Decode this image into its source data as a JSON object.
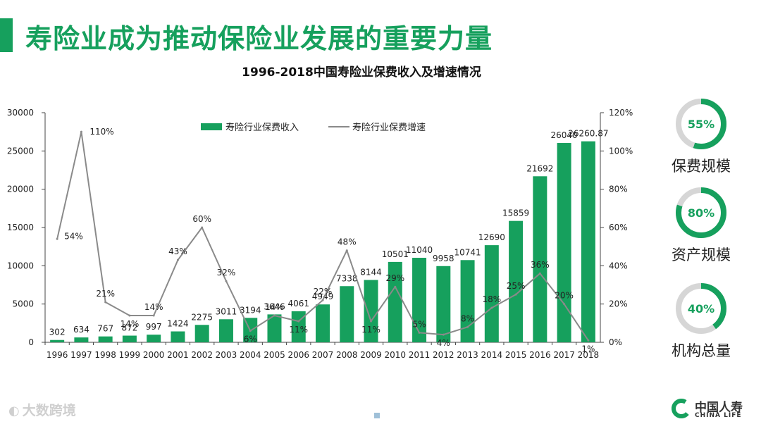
{
  "slide": {
    "title": "寿险业成为推动保险业发展的重要力量",
    "watermark": "大数跨境",
    "watermark_icon": "weibo-icon",
    "logo": {
      "cn": "中国人寿",
      "en": "CHINA LIFE",
      "icon": "china-life-logo-icon"
    }
  },
  "colors": {
    "accent": "#16a05d",
    "line": "#8a8a8a",
    "donut_track": "#d6d6d6"
  },
  "chart_data": {
    "type": "bar",
    "title": "1996-2018中国寿险业保费收入及增速情况",
    "categories": [
      "1996",
      "1997",
      "1998",
      "1999",
      "2000",
      "2001",
      "2002",
      "2003",
      "2004",
      "2005",
      "2006",
      "2007",
      "2008",
      "2009",
      "2010",
      "2011",
      "2012",
      "2013",
      "2014",
      "2015",
      "2016",
      "2017",
      "2018"
    ],
    "series": [
      {
        "name": "寿险行业保费收入",
        "kind": "bar",
        "axis": "left",
        "values": [
          302,
          634,
          767,
          872,
          997,
          1424,
          2275,
          3011,
          3194,
          3646,
          4061,
          4949,
          7338,
          8144,
          10501,
          11040,
          9958,
          10741,
          12690,
          15859,
          21692,
          26040,
          26260.87
        ],
        "labels": [
          "302",
          "634",
          "767",
          "872",
          "997",
          "1424",
          "2275",
          "3011",
          "3194",
          "3646",
          "4061",
          "4949",
          "7338",
          "8144",
          "10501",
          "11040",
          "9958",
          "10741",
          "12690",
          "15859",
          "21692",
          "26040",
          "26260.87"
        ]
      },
      {
        "name": "寿险行业保费增速",
        "kind": "line",
        "axis": "right",
        "values": [
          54,
          110,
          21,
          14,
          14,
          43,
          60,
          32,
          6,
          14,
          11,
          22,
          48,
          11,
          29,
          5,
          4,
          8,
          18,
          25,
          36,
          20,
          1
        ],
        "labels": [
          "54%",
          "110%",
          "21%",
          "14%",
          "14%",
          "43%",
          "60%",
          "32%",
          "6%",
          "14%",
          "11%",
          "22%",
          "48%",
          "11%",
          "29%",
          "5%",
          "4%",
          "8%",
          "18%",
          "25%",
          "36%",
          "20%",
          "1%"
        ]
      }
    ],
    "y_left": {
      "min": 0,
      "max": 30000,
      "ticks": [
        "0",
        "5000",
        "10000",
        "15000",
        "20000",
        "25000",
        "30000"
      ]
    },
    "y_right": {
      "min": 0,
      "max": 120,
      "ticks": [
        "0%",
        "20%",
        "40%",
        "60%",
        "80%",
        "100%",
        "120%"
      ]
    },
    "legend_position": "top-center",
    "grid": false
  },
  "donuts": [
    {
      "value": 55,
      "label_text": "55%",
      "caption": "保费规模"
    },
    {
      "value": 80,
      "label_text": "80%",
      "caption": "资产规模"
    },
    {
      "value": 40,
      "label_text": "40%",
      "caption": "机构总量"
    }
  ]
}
